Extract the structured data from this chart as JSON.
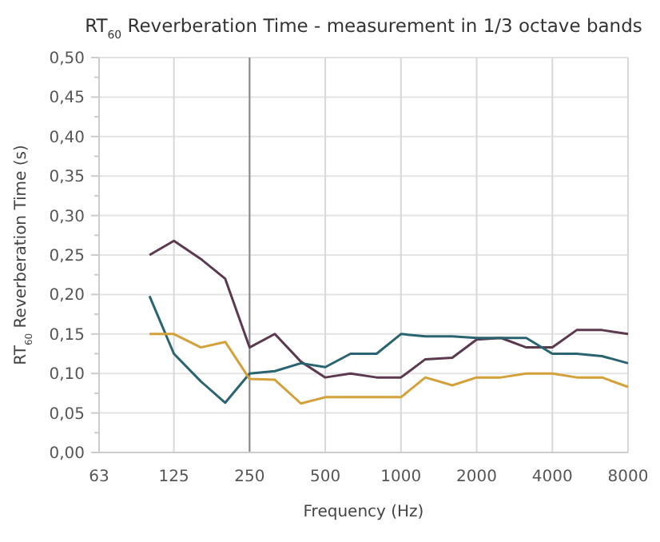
{
  "chart_data": {
    "type": "line",
    "title": "RT$_{60}$ Reverberation Time  - measurement in 1/3 octave bands",
    "xlabel": "Frequency (Hz)",
    "ylabel": "RT$_{60}$ Reverberation Time (s)",
    "log": "x",
    "grid": true,
    "marker": "none",
    "line_style": "solid",
    "x": [
      100,
      125,
      160,
      200,
      250,
      315,
      400,
      500,
      630,
      800,
      1000,
      1250,
      1600,
      2000,
      2500,
      3150,
      4000,
      5000,
      6300,
      8000
    ],
    "xlim": [
      63,
      8000
    ],
    "xticks": [
      63,
      125,
      250,
      500,
      1000,
      2000,
      4000,
      8000
    ],
    "ylim": [
      0,
      0.5
    ],
    "yticks": [
      {
        "value": 0,
        "label": "0,00"
      },
      {
        "value": 0.05,
        "label": "0,05"
      },
      {
        "value": 0.1,
        "label": "0,10"
      },
      {
        "value": 0.15,
        "label": "0,15"
      },
      {
        "value": 0.2,
        "label": "0,20"
      },
      {
        "value": 0.25,
        "label": "0,25"
      },
      {
        "value": 0.3,
        "label": "0,30"
      },
      {
        "value": 0.35,
        "label": "0,35"
      },
      {
        "value": 0.4,
        "label": "0,40"
      },
      {
        "value": 0.45,
        "label": "0,45"
      },
      {
        "value": 0.5,
        "label": "0,50"
      }
    ],
    "ref_lines": [
      {
        "axis": "x",
        "value": 250,
        "color": "#888888"
      }
    ],
    "series": [
      {
        "color": "#5b3a50",
        "values": [
          0.25,
          0.268,
          0.245,
          0.22,
          0.133,
          0.15,
          0.115,
          0.095,
          0.1,
          0.095,
          0.095,
          0.118,
          0.12,
          0.143,
          0.145,
          0.133,
          0.133,
          0.155,
          0.155,
          0.15
        ]
      },
      {
        "color": "#2a6470",
        "values": [
          0.198,
          0.125,
          0.09,
          0.063,
          0.1,
          0.103,
          0.113,
          0.108,
          0.125,
          0.125,
          0.15,
          0.147,
          0.147,
          0.145,
          0.145,
          0.145,
          0.125,
          0.125,
          0.122,
          0.113
        ]
      },
      {
        "color": "#d4a03a",
        "values": [
          0.15,
          0.15,
          0.133,
          0.14,
          0.093,
          0.092,
          0.062,
          0.07,
          0.07,
          0.07,
          0.07,
          0.095,
          0.085,
          0.095,
          0.095,
          0.1,
          0.1,
          0.095,
          0.095,
          0.083
        ]
      }
    ]
  }
}
